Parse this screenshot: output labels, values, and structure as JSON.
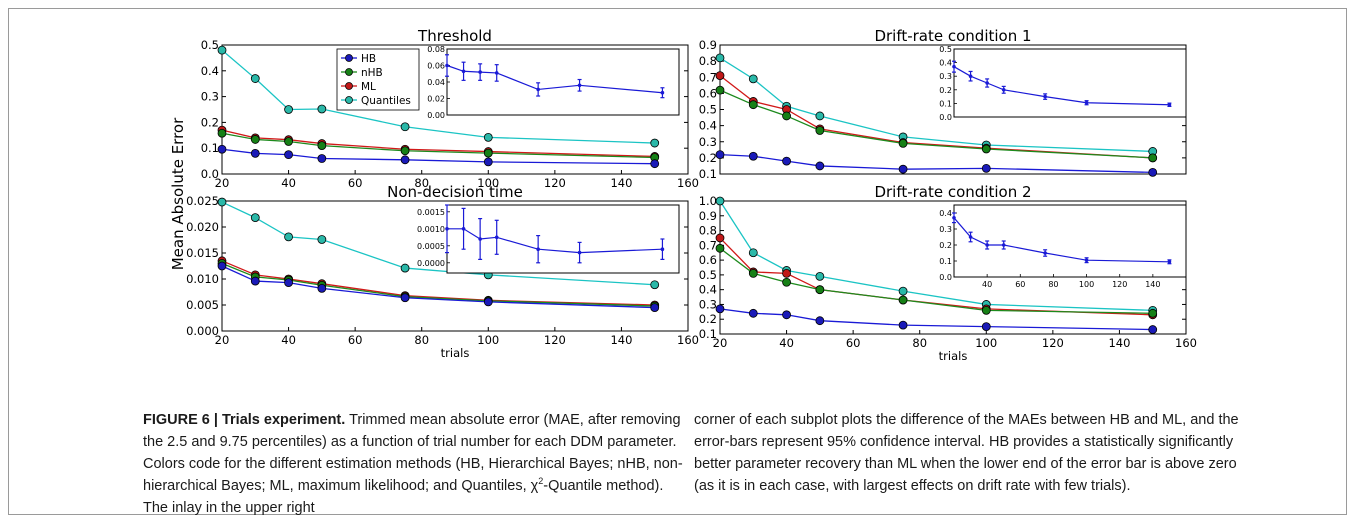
{
  "figure": {
    "y_label": "Mean Absolute Error",
    "x_label": "trials",
    "legend": [
      "HB",
      "nHB",
      "ML",
      "Quantiles"
    ],
    "colors": {
      "HB": "#1a1ad6",
      "nHB": "#1d8a1d",
      "ML": "#d11919",
      "Quantiles": "#1bc4c4",
      "HB_marker": "#1a1ab8",
      "nHB_marker": "#168016",
      "ML_marker": "#c01818",
      "Quantiles_marker": "#2ab8a8"
    }
  },
  "caption": {
    "label": "FIGURE 6 | Trials experiment.",
    "left_text": " Trimmed mean absolute error (MAE, after removing the 2.5 and 9.75 percentiles) as a function of trial number for each DDM parameter. Colors code for the different estimation methods (HB, Hierarchical Bayes; nHB, non-hierarchical Bayes; ML, maximum likelihood; and Quantiles, χ",
    "chi_sup": "2",
    "left_text_end": "-Quantile method). The inlay in the upper right",
    "right_text": "corner of each subplot plots the difference of the MAEs between HB and ML, and the error-bars represent 95% confidence interval. HB provides a statistically significantly better parameter recovery than ML when the lower end of the error bar is above zero (as it is in each case, with largest effects on drift rate with few trials)."
  },
  "chart_data": [
    {
      "type": "line",
      "title": "Threshold",
      "xlim": [
        20,
        160
      ],
      "ylim": [
        0,
        0.5
      ],
      "xticks": [
        "20",
        "40",
        "60",
        "80",
        "100",
        "120",
        "140",
        "160"
      ],
      "yticks": [
        "0.0",
        "0.1",
        "0.2",
        "0.3",
        "0.4",
        "0.5"
      ],
      "x": [
        20,
        30,
        40,
        50,
        75,
        100,
        150
      ],
      "series": [
        {
          "name": "Quantiles",
          "values": [
            0.48,
            0.37,
            0.25,
            0.252,
            0.183,
            0.142,
            0.12
          ]
        },
        {
          "name": "ML",
          "values": [
            0.17,
            0.14,
            0.133,
            0.118,
            0.096,
            0.087,
            0.068
          ]
        },
        {
          "name": "nHB",
          "values": [
            0.158,
            0.134,
            0.126,
            0.11,
            0.09,
            0.081,
            0.064
          ]
        },
        {
          "name": "HB",
          "values": [
            0.096,
            0.08,
            0.075,
            0.06,
            0.055,
            0.047,
            0.04
          ]
        }
      ],
      "inset": {
        "x": [
          20,
          30,
          40,
          50,
          75,
          100,
          150
        ],
        "values": [
          0.06,
          0.053,
          0.052,
          0.051,
          0.031,
          0.036,
          0.027
        ],
        "err": [
          0.013,
          0.011,
          0.01,
          0.01,
          0.008,
          0.007,
          0.006
        ],
        "ylim": [
          0,
          0.08
        ],
        "yticks": [
          "0.00",
          "0.02",
          "0.04",
          "0.06",
          "0.08"
        ],
        "xticks": []
      }
    },
    {
      "type": "line",
      "title": "Drift-rate condition 1",
      "xlim": [
        20,
        160
      ],
      "ylim": [
        0.1,
        0.9
      ],
      "xticks": [],
      "yticks": [
        "0.1",
        "0.2",
        "0.3",
        "0.4",
        "0.5",
        "0.6",
        "0.7",
        "0.8",
        "0.9"
      ],
      "x": [
        20,
        30,
        40,
        50,
        75,
        100,
        150
      ],
      "series": [
        {
          "name": "Quantiles",
          "values": [
            0.82,
            0.69,
            0.52,
            0.46,
            0.33,
            0.28,
            0.24
          ]
        },
        {
          "name": "ML",
          "values": [
            0.71,
            0.55,
            0.5,
            0.38,
            0.295,
            0.26,
            0.2
          ]
        },
        {
          "name": "nHB",
          "values": [
            0.62,
            0.53,
            0.46,
            0.37,
            0.29,
            0.255,
            0.2
          ]
        },
        {
          "name": "HB",
          "values": [
            0.22,
            0.21,
            0.18,
            0.15,
            0.13,
            0.135,
            0.11
          ]
        }
      ],
      "inset": {
        "x": [
          20,
          30,
          40,
          50,
          75,
          100,
          150
        ],
        "values": [
          0.37,
          0.3,
          0.25,
          0.2,
          0.15,
          0.105,
          0.09
        ],
        "err": [
          0.04,
          0.035,
          0.03,
          0.025,
          0.02,
          0.015,
          0.012
        ],
        "ylim": [
          0,
          0.5
        ],
        "yticks": [
          "0.0",
          "0.1",
          "0.2",
          "0.3",
          "0.4",
          "0.5"
        ],
        "xticks": []
      }
    },
    {
      "type": "line",
      "title": "Non-decision time",
      "xlim": [
        20,
        160
      ],
      "ylim": [
        0,
        0.025
      ],
      "xticks": [
        "20",
        "40",
        "60",
        "80",
        "100",
        "120",
        "140",
        "160"
      ],
      "yticks": [
        "0.000",
        "0.005",
        "0.010",
        "0.015",
        "0.020",
        "0.025"
      ],
      "x": [
        20,
        30,
        40,
        50,
        75,
        100,
        150
      ],
      "series": [
        {
          "name": "Quantiles",
          "values": [
            0.0248,
            0.0218,
            0.0181,
            0.0176,
            0.0121,
            0.0108,
            0.0089
          ]
        },
        {
          "name": "ML",
          "values": [
            0.0135,
            0.0108,
            0.01,
            0.0091,
            0.0068,
            0.0059,
            0.005
          ]
        },
        {
          "name": "nHB",
          "values": [
            0.013,
            0.0104,
            0.0098,
            0.0088,
            0.0066,
            0.0058,
            0.0048
          ]
        },
        {
          "name": "HB",
          "values": [
            0.0125,
            0.0096,
            0.0093,
            0.0082,
            0.0064,
            0.0056,
            0.0045
          ]
        }
      ],
      "inset": {
        "x": [
          20,
          30,
          40,
          50,
          75,
          100,
          150
        ],
        "values": [
          0.001,
          0.001,
          0.0007,
          0.00075,
          0.0004,
          0.0003,
          0.0004
        ],
        "err": [
          0.0007,
          0.0006,
          0.0006,
          0.0005,
          0.0004,
          0.0003,
          0.0003
        ],
        "ylim": [
          -0.0003,
          0.0017
        ],
        "yticks": [
          "0.0000",
          "0.0005",
          "0.0010",
          "0.0015"
        ],
        "xticks": []
      }
    },
    {
      "type": "line",
      "title": "Drift-rate condition 2",
      "xlim": [
        20,
        160
      ],
      "ylim": [
        0.1,
        1.0
      ],
      "xticks": [
        "20",
        "40",
        "60",
        "80",
        "100",
        "120",
        "140",
        "160"
      ],
      "yticks": [
        "0.1",
        "0.2",
        "0.3",
        "0.4",
        "0.5",
        "0.6",
        "0.7",
        "0.8",
        "0.9",
        "1.0"
      ],
      "x": [
        20,
        30,
        40,
        50,
        75,
        100,
        150
      ],
      "series": [
        {
          "name": "Quantiles",
          "values": [
            1.0,
            0.65,
            0.53,
            0.49,
            0.39,
            0.3,
            0.26
          ]
        },
        {
          "name": "ML",
          "values": [
            0.75,
            0.52,
            0.51,
            0.4,
            0.33,
            0.27,
            0.23
          ]
        },
        {
          "name": "nHB",
          "values": [
            0.68,
            0.51,
            0.45,
            0.4,
            0.33,
            0.26,
            0.24
          ]
        },
        {
          "name": "HB",
          "values": [
            0.27,
            0.24,
            0.23,
            0.19,
            0.16,
            0.15,
            0.13
          ]
        }
      ],
      "inset": {
        "x": [
          20,
          30,
          40,
          50,
          75,
          100,
          150
        ],
        "values": [
          0.37,
          0.25,
          0.2,
          0.2,
          0.15,
          0.105,
          0.095
        ],
        "err": [
          0.03,
          0.03,
          0.025,
          0.025,
          0.02,
          0.015,
          0.012
        ],
        "ylim": [
          0,
          0.45
        ],
        "yticks": [
          "0.0",
          "0.1",
          "0.2",
          "0.3",
          "0.4"
        ],
        "xticks": [
          "40",
          "60",
          "80",
          "100",
          "120",
          "140"
        ]
      }
    }
  ]
}
